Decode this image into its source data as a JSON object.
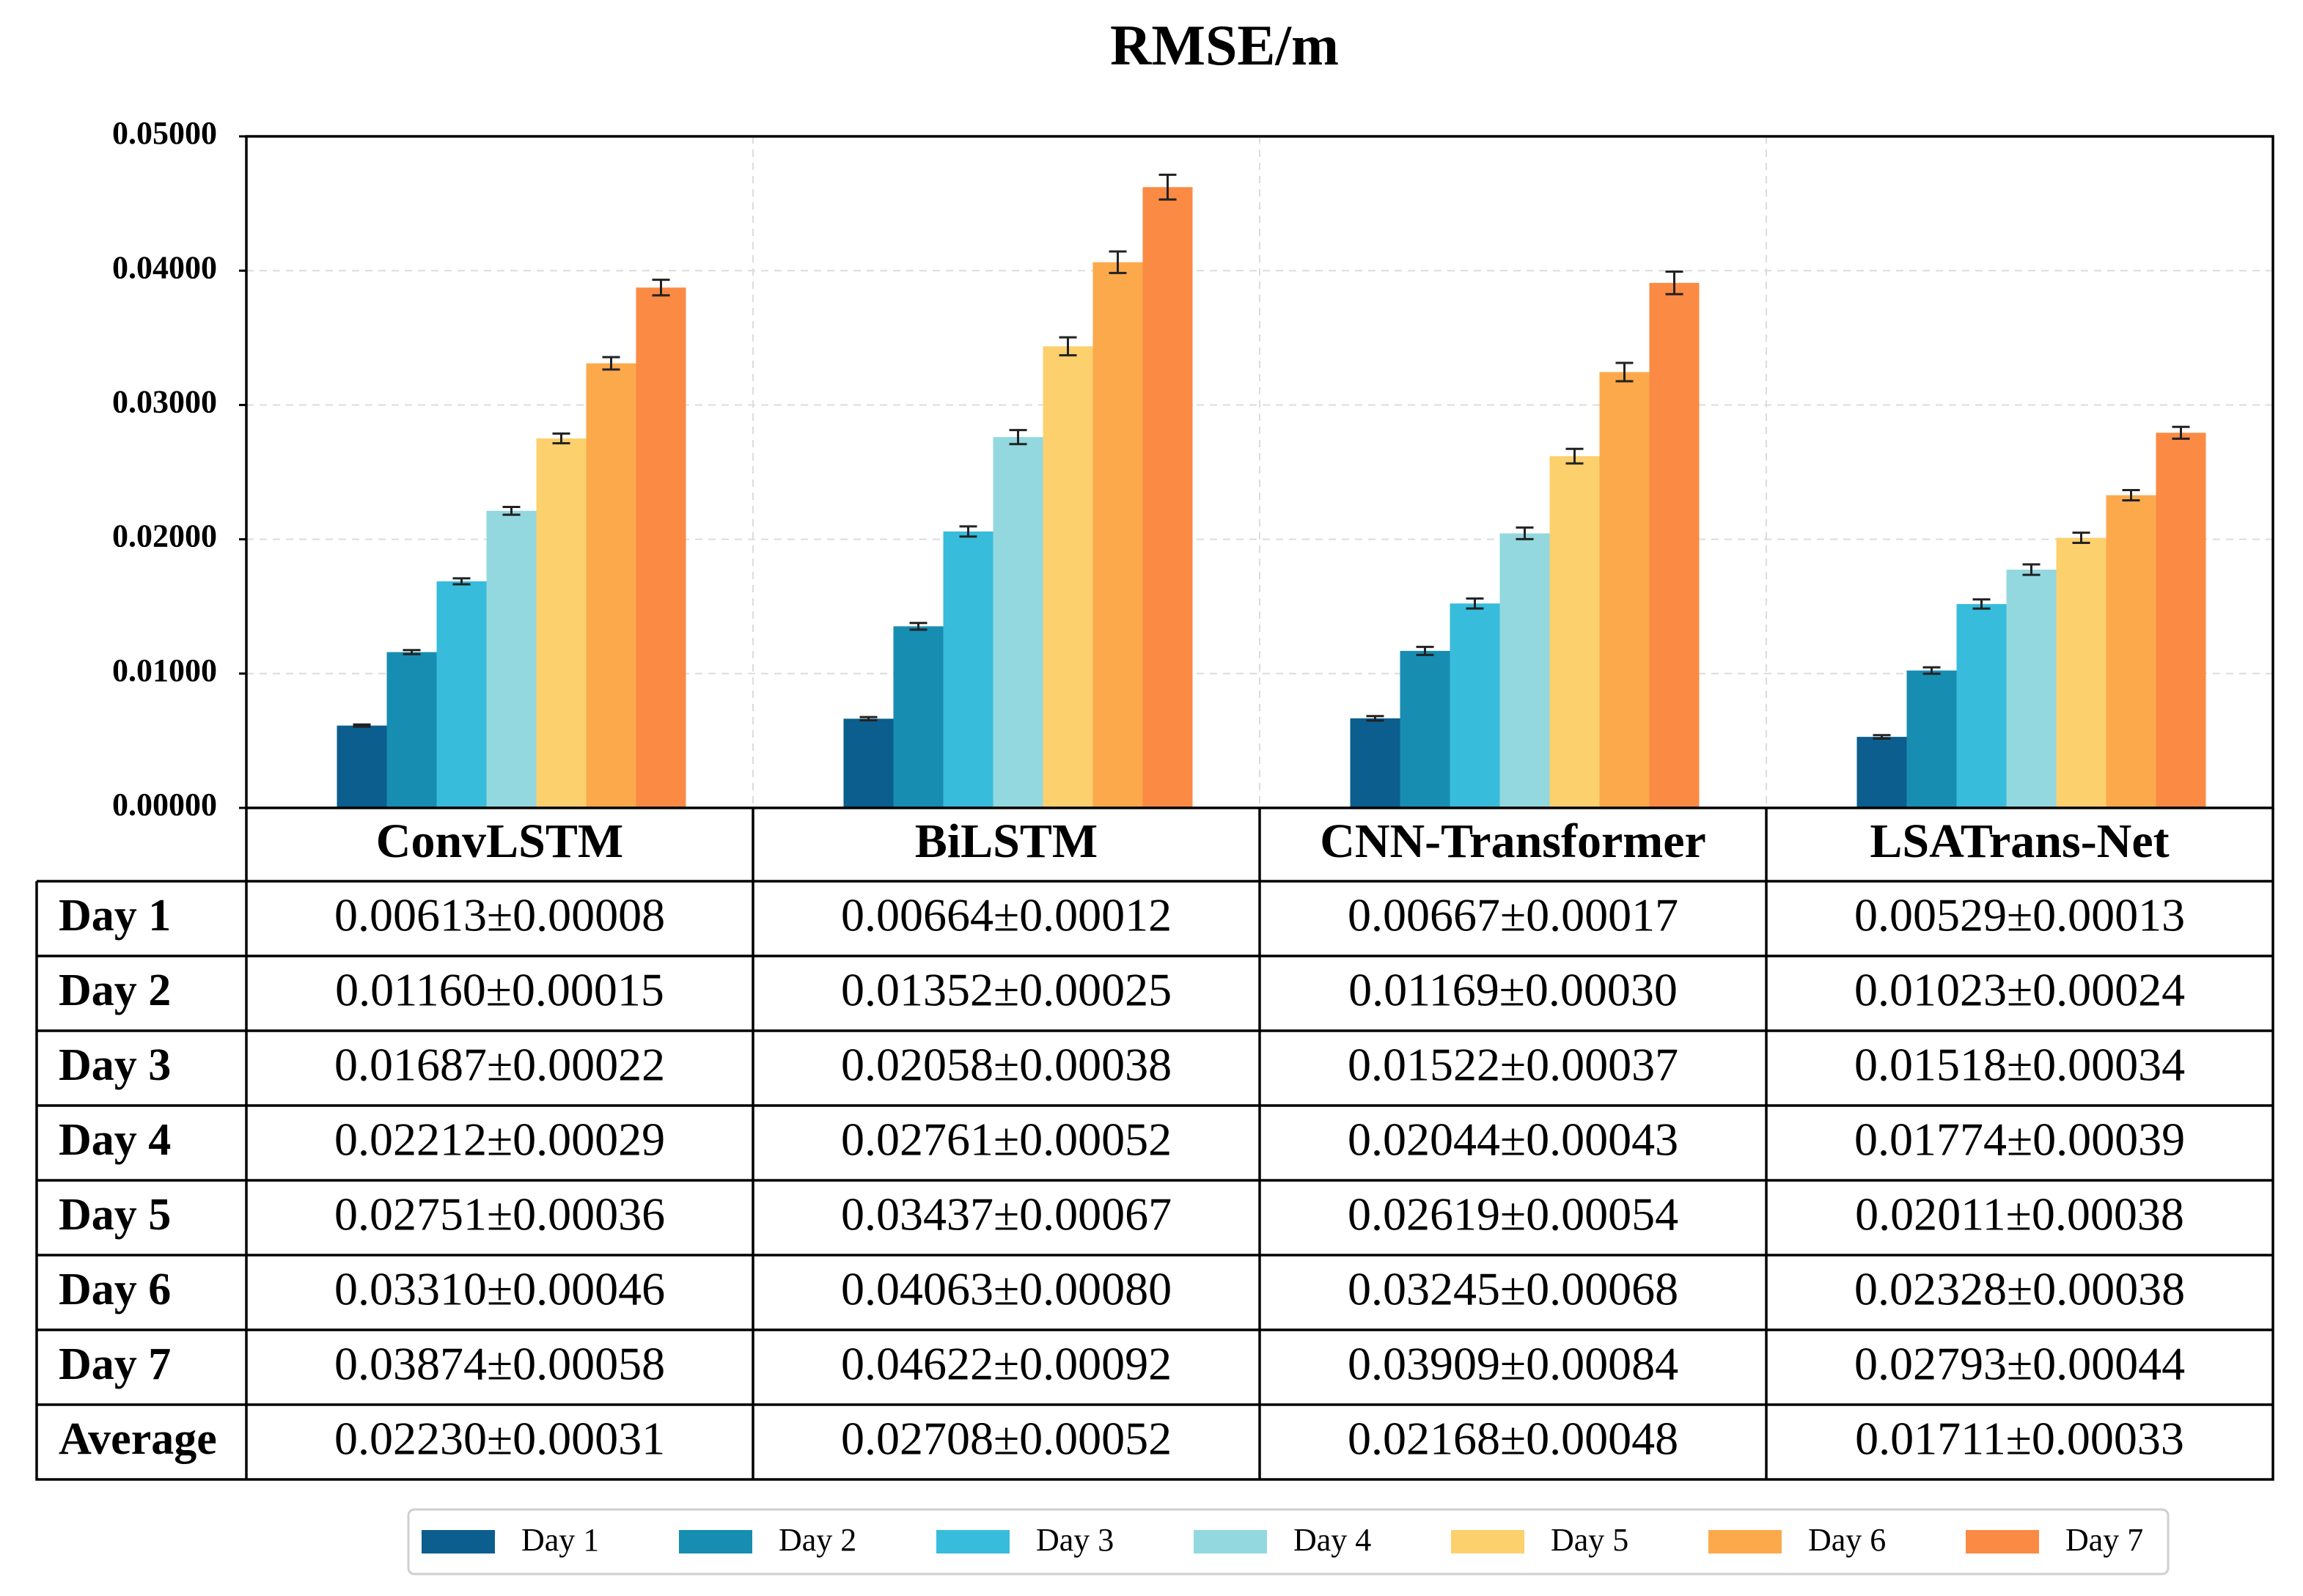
{
  "chart_data": {
    "type": "bar",
    "title": "RMSE/m",
    "categories": [
      "ConvLSTM",
      "BiLSTM",
      "CNN-Transformer",
      "LSATrans-Net"
    ],
    "series": [
      {
        "name": "Day 1",
        "color": "#0b5e8e",
        "values": [
          0.00613,
          0.00664,
          0.00667,
          0.00529
        ],
        "errors": [
          8e-05,
          0.00012,
          0.00017,
          0.00013
        ]
      },
      {
        "name": "Day 2",
        "color": "#178db2",
        "values": [
          0.0116,
          0.01352,
          0.01169,
          0.01023
        ],
        "errors": [
          0.00015,
          0.00025,
          0.0003,
          0.00024
        ]
      },
      {
        "name": "Day 3",
        "color": "#38bcdb",
        "values": [
          0.01687,
          0.02058,
          0.01522,
          0.01518
        ],
        "errors": [
          0.00022,
          0.00038,
          0.00037,
          0.00034
        ]
      },
      {
        "name": "Day 4",
        "color": "#93d8df",
        "values": [
          0.02212,
          0.02761,
          0.02044,
          0.01774
        ],
        "errors": [
          0.00029,
          0.00052,
          0.00043,
          0.00039
        ]
      },
      {
        "name": "Day 5",
        "color": "#fdd06e",
        "values": [
          0.02751,
          0.03437,
          0.02619,
          0.02011
        ],
        "errors": [
          0.00036,
          0.00067,
          0.00054,
          0.00038
        ]
      },
      {
        "name": "Day 6",
        "color": "#fca94c",
        "values": [
          0.0331,
          0.04063,
          0.03245,
          0.02328
        ],
        "errors": [
          0.00046,
          0.0008,
          0.00068,
          0.00038
        ]
      },
      {
        "name": "Day 7",
        "color": "#fb8a44",
        "values": [
          0.03874,
          0.04622,
          0.03909,
          0.02793
        ],
        "errors": [
          0.00058,
          0.00092,
          0.00084,
          0.00044
        ]
      }
    ],
    "ylim": [
      0,
      0.05
    ],
    "yticks": [
      {
        "value": 0,
        "label": "0.00000"
      },
      {
        "value": 0.01,
        "label": "0.01000"
      },
      {
        "value": 0.02,
        "label": "0.02000"
      },
      {
        "value": 0.03,
        "label": "0.03000"
      },
      {
        "value": 0.04,
        "label": "0.04000"
      },
      {
        "value": 0.05,
        "label": "0.05000"
      }
    ],
    "grid": true,
    "legend": "bottom"
  },
  "table": {
    "rows": [
      {
        "label": "Day 1",
        "cells": [
          "0.00613±0.00008",
          "0.00664±0.00012",
          "0.00667±0.00017",
          "0.00529±0.00013"
        ]
      },
      {
        "label": "Day 2",
        "cells": [
          "0.01160±0.00015",
          "0.01352±0.00025",
          "0.01169±0.00030",
          "0.01023±0.00024"
        ]
      },
      {
        "label": "Day 3",
        "cells": [
          "0.01687±0.00022",
          "0.02058±0.00038",
          "0.01522±0.00037",
          "0.01518±0.00034"
        ]
      },
      {
        "label": "Day 4",
        "cells": [
          "0.02212±0.00029",
          "0.02761±0.00052",
          "0.02044±0.00043",
          "0.01774±0.00039"
        ]
      },
      {
        "label": "Day 5",
        "cells": [
          "0.02751±0.00036",
          "0.03437±0.00067",
          "0.02619±0.00054",
          "0.02011±0.00038"
        ]
      },
      {
        "label": "Day 6",
        "cells": [
          "0.03310±0.00046",
          "0.04063±0.00080",
          "0.03245±0.00068",
          "0.02328±0.00038"
        ]
      },
      {
        "label": "Day 7",
        "cells": [
          "0.03874±0.00058",
          "0.04622±0.00092",
          "0.03909±0.00084",
          "0.02793±0.00044"
        ]
      },
      {
        "label": "Average",
        "cells": [
          "0.02230±0.00031",
          "0.02708±0.00052",
          "0.02168±0.00048",
          "0.01711±0.00033"
        ]
      }
    ]
  }
}
